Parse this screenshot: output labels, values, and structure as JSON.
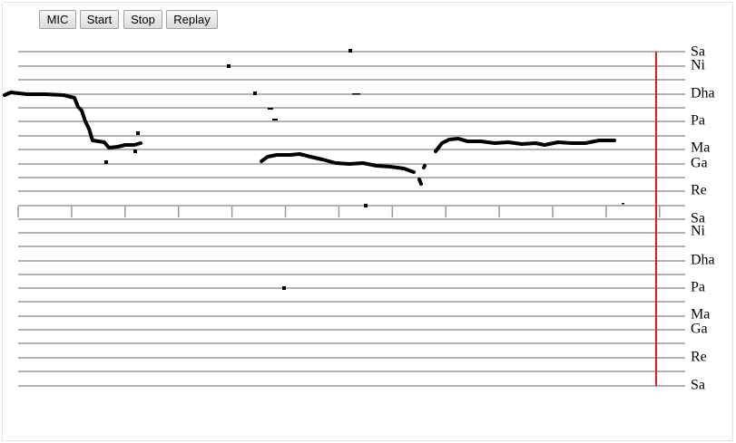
{
  "buttons": [
    "MIC",
    "Start",
    "Stop",
    "Replay"
  ],
  "upper_labels": [
    "Sa",
    "Ni",
    "Dha",
    "Pa",
    "Ma",
    "Ga",
    "Re",
    "Sa"
  ],
  "lower_labels": [
    "Ni",
    "Dha",
    "Pa",
    "Ma",
    "Ga",
    "Re",
    "Sa"
  ]
}
